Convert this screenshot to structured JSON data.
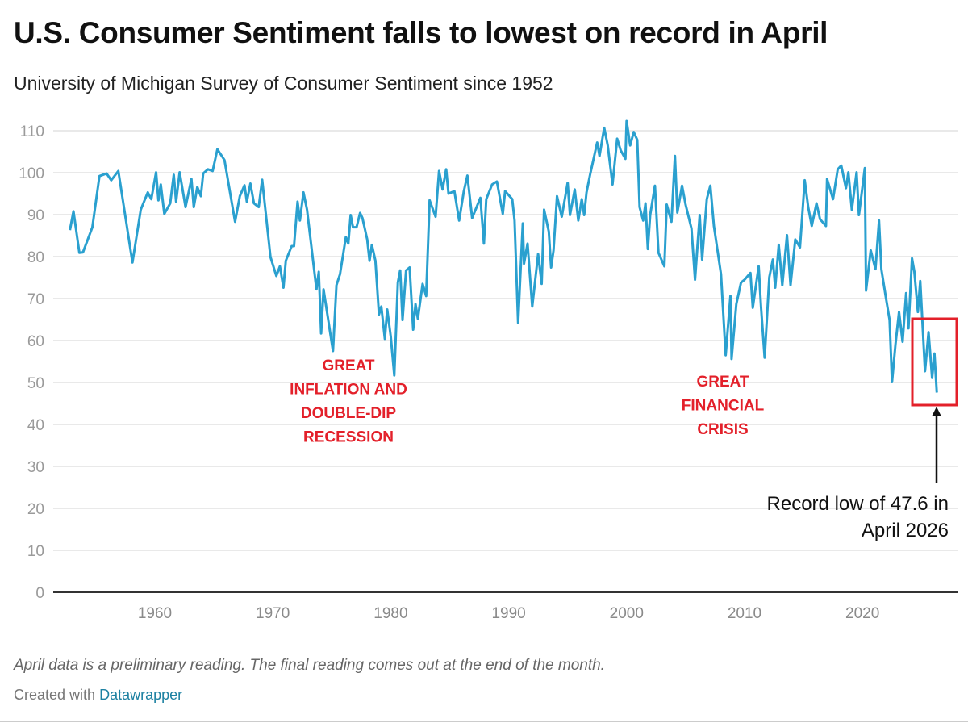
{
  "title": "U.S. Consumer Sentiment falls to lowest on record in April",
  "subtitle": "University of Michigan Survey of Consumer Sentiment since 1952",
  "footnote": "April data is a preliminary reading. The final reading comes out at the end of the month.",
  "credit": {
    "prefix": "Created with",
    "link": "Datawrapper"
  },
  "colors": {
    "line": "#2aa0cf",
    "annotation": "#e3202a",
    "link": "#1d81a2"
  },
  "chart_data": {
    "type": "line",
    "title": "U.S. Consumer Sentiment falls to lowest on record in April",
    "xlabel": "",
    "ylabel": "",
    "xlim": [
      1952,
      2027
    ],
    "ylim": [
      0,
      110
    ],
    "grid": true,
    "x_ticks": [
      "1960",
      "1970",
      "1980",
      "1990",
      "2000",
      "2010",
      "2020"
    ],
    "y_ticks": [
      "0",
      "10",
      "20",
      "30",
      "40",
      "50",
      "60",
      "70",
      "80",
      "90",
      "100",
      "110"
    ],
    "series": [
      {
        "points": [
          [
            1952.8,
            86.3
          ],
          [
            1953.1,
            90.8
          ],
          [
            1953.6,
            80.9
          ],
          [
            1953.9,
            81
          ],
          [
            1954.7,
            87
          ],
          [
            1955.3,
            99.2
          ],
          [
            1955.9,
            99.8
          ],
          [
            1956.3,
            98.2
          ],
          [
            1956.9,
            100.4
          ],
          [
            1958.1,
            78.6
          ],
          [
            1958.8,
            91.2
          ],
          [
            1959.4,
            95.3
          ],
          [
            1959.7,
            93.7
          ],
          [
            1960.1,
            100.1
          ],
          [
            1960.3,
            93.4
          ],
          [
            1960.5,
            97.2
          ],
          [
            1960.8,
            90.2
          ],
          [
            1961.3,
            92.7
          ],
          [
            1961.6,
            99.5
          ],
          [
            1961.8,
            93.1
          ],
          [
            1962.1,
            100.1
          ],
          [
            1962.6,
            91.8
          ],
          [
            1963.1,
            98.5
          ],
          [
            1963.3,
            91.8
          ],
          [
            1963.6,
            96.6
          ],
          [
            1963.9,
            94.4
          ],
          [
            1964.1,
            99.8
          ],
          [
            1964.5,
            100.8
          ],
          [
            1964.9,
            100.4
          ],
          [
            1965.3,
            105.6
          ],
          [
            1965.9,
            103
          ],
          [
            1966.8,
            88.3
          ],
          [
            1967.2,
            94.4
          ],
          [
            1967.6,
            97
          ],
          [
            1967.8,
            93.1
          ],
          [
            1968.1,
            97.4
          ],
          [
            1968.4,
            92.7
          ],
          [
            1968.8,
            91.8
          ],
          [
            1969.1,
            98.3
          ],
          [
            1969.8,
            79.9
          ],
          [
            1970.3,
            75.4
          ],
          [
            1970.6,
            77.7
          ],
          [
            1970.9,
            72.6
          ],
          [
            1971.1,
            79
          ],
          [
            1971.6,
            82.5
          ],
          [
            1971.8,
            82.5
          ],
          [
            1972.1,
            93.1
          ],
          [
            1972.3,
            88.6
          ],
          [
            1972.6,
            95.3
          ],
          [
            1972.9,
            91.2
          ],
          [
            1973.7,
            72.2
          ],
          [
            1973.9,
            76.4
          ],
          [
            1974.1,
            61.7
          ],
          [
            1974.3,
            72.2
          ],
          [
            1975.1,
            57.5
          ],
          [
            1975.4,
            73.2
          ],
          [
            1975.7,
            75.8
          ],
          [
            1976.2,
            84.7
          ],
          [
            1976.4,
            83.1
          ],
          [
            1976.6,
            89.9
          ],
          [
            1976.8,
            87
          ],
          [
            1977.1,
            87
          ],
          [
            1977.4,
            90.4
          ],
          [
            1977.6,
            89.2
          ],
          [
            1978.0,
            84.1
          ],
          [
            1978.2,
            79
          ],
          [
            1978.4,
            82.8
          ],
          [
            1978.7,
            79
          ],
          [
            1979.0,
            66.2
          ],
          [
            1979.2,
            68.1
          ],
          [
            1979.5,
            60.4
          ],
          [
            1979.7,
            67.4
          ],
          [
            1980.0,
            61
          ],
          [
            1980.3,
            51.7
          ],
          [
            1980.6,
            73.8
          ],
          [
            1980.8,
            76.7
          ],
          [
            1981.0,
            64.9
          ],
          [
            1981.3,
            76.7
          ],
          [
            1981.6,
            77.4
          ],
          [
            1981.9,
            62.6
          ],
          [
            1982.1,
            68.7
          ],
          [
            1982.3,
            65.2
          ],
          [
            1982.7,
            73.5
          ],
          [
            1983.0,
            70.6
          ],
          [
            1983.3,
            93.4
          ],
          [
            1983.8,
            89.5
          ],
          [
            1984.1,
            100.4
          ],
          [
            1984.4,
            96
          ],
          [
            1984.7,
            100.8
          ],
          [
            1984.9,
            95
          ],
          [
            1985.4,
            95.6
          ],
          [
            1985.8,
            88.6
          ],
          [
            1986.2,
            95.6
          ],
          [
            1986.5,
            99.3
          ],
          [
            1986.9,
            89.2
          ],
          [
            1987.6,
            94
          ],
          [
            1987.9,
            83.1
          ],
          [
            1988.1,
            93.7
          ],
          [
            1988.6,
            97.2
          ],
          [
            1989.0,
            97.9
          ],
          [
            1989.5,
            90.2
          ],
          [
            1989.7,
            95.6
          ],
          [
            1990.3,
            93.7
          ],
          [
            1990.5,
            88.6
          ],
          [
            1990.8,
            64.2
          ],
          [
            1991.2,
            87.9
          ],
          [
            1991.3,
            78.3
          ],
          [
            1991.6,
            83.1
          ],
          [
            1992.0,
            68.1
          ],
          [
            1992.5,
            80.6
          ],
          [
            1992.8,
            73.5
          ],
          [
            1993.0,
            91.2
          ],
          [
            1993.4,
            86
          ],
          [
            1993.6,
            77.4
          ],
          [
            1993.8,
            81.5
          ],
          [
            1994.1,
            94.4
          ],
          [
            1994.5,
            89.5
          ],
          [
            1995.0,
            97.6
          ],
          [
            1995.2,
            89.9
          ],
          [
            1995.6,
            96
          ],
          [
            1995.9,
            88.6
          ],
          [
            1996.2,
            93.7
          ],
          [
            1996.4,
            89.9
          ],
          [
            1996.6,
            95.3
          ],
          [
            1996.9,
            99.5
          ],
          [
            1997.5,
            107.2
          ],
          [
            1997.7,
            104
          ],
          [
            1998.1,
            110.7
          ],
          [
            1998.4,
            106.5
          ],
          [
            1998.8,
            97.2
          ],
          [
            1999.2,
            108.1
          ],
          [
            1999.5,
            105.3
          ],
          [
            1999.9,
            103.3
          ],
          [
            2000.0,
            112.3
          ],
          [
            2000.3,
            106.5
          ],
          [
            2000.6,
            109.7
          ],
          [
            2000.9,
            107.8
          ],
          [
            2001.1,
            91.8
          ],
          [
            2001.4,
            88.6
          ],
          [
            2001.6,
            92.7
          ],
          [
            2001.8,
            81.8
          ],
          [
            2002.0,
            89.9
          ],
          [
            2002.4,
            96.9
          ],
          [
            2002.7,
            80.9
          ],
          [
            2003.2,
            77.7
          ],
          [
            2003.4,
            92.4
          ],
          [
            2003.8,
            88.3
          ],
          [
            2004.1,
            104
          ],
          [
            2004.3,
            90.5
          ],
          [
            2004.7,
            96.9
          ],
          [
            2005.0,
            92.4
          ],
          [
            2005.5,
            86.7
          ],
          [
            2005.8,
            74.5
          ],
          [
            2006.2,
            89.9
          ],
          [
            2006.4,
            79.3
          ],
          [
            2006.8,
            93.7
          ],
          [
            2007.1,
            96.9
          ],
          [
            2007.4,
            87.3
          ],
          [
            2008.0,
            75.8
          ],
          [
            2008.4,
            56.5
          ],
          [
            2008.8,
            70.6
          ],
          [
            2008.9,
            55.6
          ],
          [
            2009.3,
            68.7
          ],
          [
            2009.7,
            73.8
          ],
          [
            2010.0,
            74.5
          ],
          [
            2010.5,
            76.1
          ],
          [
            2010.7,
            67.8
          ],
          [
            2011.2,
            77.7
          ],
          [
            2011.4,
            67.8
          ],
          [
            2011.7,
            55.9
          ],
          [
            2012.1,
            75.1
          ],
          [
            2012.4,
            79.3
          ],
          [
            2012.6,
            72.6
          ],
          [
            2012.9,
            82.8
          ],
          [
            2013.2,
            73.2
          ],
          [
            2013.6,
            85.1
          ],
          [
            2013.9,
            73.2
          ],
          [
            2014.3,
            84.1
          ],
          [
            2014.7,
            82.2
          ],
          [
            2015.1,
            98.2
          ],
          [
            2015.4,
            91.8
          ],
          [
            2015.7,
            87.3
          ],
          [
            2016.1,
            92.7
          ],
          [
            2016.4,
            88.9
          ],
          [
            2016.9,
            87.3
          ],
          [
            2017.0,
            98.5
          ],
          [
            2017.5,
            93.7
          ],
          [
            2017.9,
            100.8
          ],
          [
            2018.2,
            101.7
          ],
          [
            2018.6,
            96.3
          ],
          [
            2018.8,
            100.1
          ],
          [
            2019.1,
            91.2
          ],
          [
            2019.5,
            100.1
          ],
          [
            2019.7,
            89.9
          ],
          [
            2020.2,
            101.1
          ],
          [
            2020.3,
            71.9
          ],
          [
            2020.7,
            81.5
          ],
          [
            2021.1,
            77
          ],
          [
            2021.4,
            88.6
          ],
          [
            2021.6,
            77
          ],
          [
            2022.0,
            70
          ],
          [
            2022.3,
            64.9
          ],
          [
            2022.5,
            50.1
          ],
          [
            2022.8,
            59.1
          ],
          [
            2023.1,
            66.8
          ],
          [
            2023.4,
            59.7
          ],
          [
            2023.7,
            71.3
          ],
          [
            2023.9,
            62.9
          ],
          [
            2024.2,
            79.6
          ],
          [
            2024.4,
            76.4
          ],
          [
            2024.7,
            66.8
          ],
          [
            2024.9,
            74.2
          ],
          [
            2025.3,
            52.7
          ],
          [
            2025.6,
            62
          ],
          [
            2025.9,
            51.1
          ],
          [
            2026.1,
            56.9
          ],
          [
            2026.3,
            47.6
          ]
        ]
      }
    ],
    "annotations": [
      {
        "lines": [
          "GREAT",
          "INFLATION AND",
          "DOUBLE-DIP",
          "RECESSION"
        ],
        "x": 1977.0,
        "y": 55
      },
      {
        "lines": [
          "GREAT",
          "FINANCIAL",
          "CRISIS"
        ],
        "x": 2008.9,
        "y": 51
      },
      {
        "lines": [
          "Record low of 47.6 in",
          "April 2026"
        ],
        "x": 2026.3,
        "y": 47.6
      }
    ]
  }
}
